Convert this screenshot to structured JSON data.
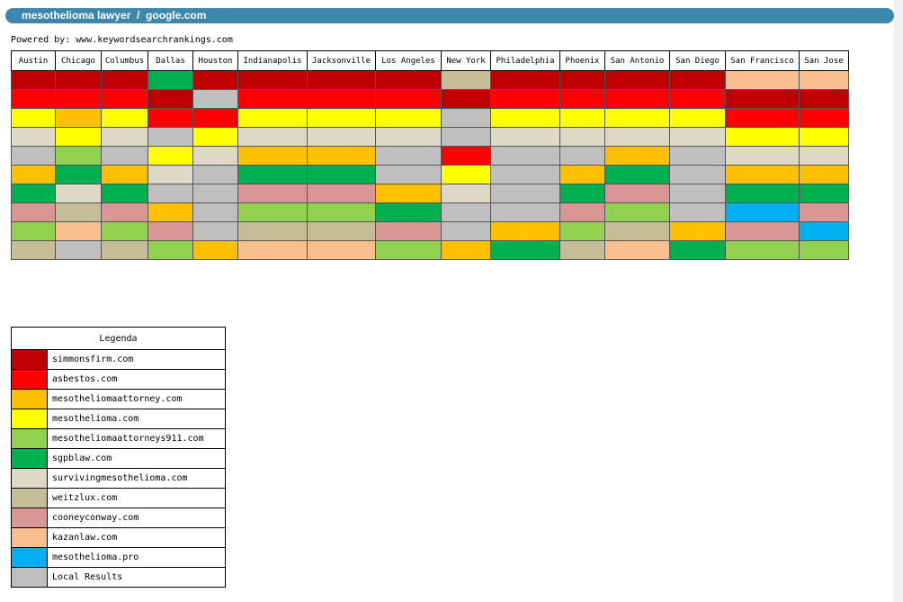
{
  "header": {
    "title": "mesothelioma lawyer  /  google.com"
  },
  "powered_by": "Powered by: www.keywordsearchrankings.com",
  "colors": {
    "simmonsfirm": "#c00000",
    "asbestos": "#ff0000",
    "mesotheliomaattorney": "#ffc000",
    "mesothelioma": "#ffff00",
    "mesotheliomaattorneys911": "#92d050",
    "sgpblaw": "#00b050",
    "survivingmesothelioma": "#ddd9c4",
    "weitzlux": "#c4bd97",
    "cooneyconway": "#da9694",
    "kazanlaw": "#fabf8f",
    "mesothelioma_pro": "#00b0f0",
    "local": "#bfbfbf"
  },
  "grid": {
    "cities": [
      "Austin",
      "Chicago",
      "Columbus",
      "Dallas",
      "Houston",
      "Indianapolis",
      "Jacksonville",
      "Los Angeles",
      "New York",
      "Philadelphia",
      "Phoenix",
      "San Antonio",
      "San Diego",
      "San Francisco",
      "San Jose"
    ],
    "rows": [
      [
        "simmonsfirm",
        "simmonsfirm",
        "simmonsfirm",
        "sgpblaw",
        "simmonsfirm",
        "simmonsfirm",
        "simmonsfirm",
        "simmonsfirm",
        "weitzlux",
        "simmonsfirm",
        "simmonsfirm",
        "simmonsfirm",
        "simmonsfirm",
        "kazanlaw",
        "kazanlaw"
      ],
      [
        "asbestos",
        "asbestos",
        "asbestos",
        "simmonsfirm",
        "local",
        "asbestos",
        "asbestos",
        "asbestos",
        "simmonsfirm",
        "asbestos",
        "asbestos",
        "asbestos",
        "asbestos",
        "simmonsfirm",
        "simmonsfirm"
      ],
      [
        "mesothelioma",
        "mesotheliomaattorney",
        "mesothelioma",
        "asbestos",
        "asbestos",
        "mesothelioma",
        "mesothelioma",
        "mesothelioma",
        "local",
        "mesothelioma",
        "mesothelioma",
        "mesothelioma",
        "mesothelioma",
        "asbestos",
        "asbestos"
      ],
      [
        "survivingmesothelioma",
        "mesothelioma",
        "survivingmesothelioma",
        "local",
        "mesothelioma",
        "survivingmesothelioma",
        "survivingmesothelioma",
        "survivingmesothelioma",
        "local",
        "survivingmesothelioma",
        "survivingmesothelioma",
        "survivingmesothelioma",
        "survivingmesothelioma",
        "mesothelioma",
        "mesothelioma"
      ],
      [
        "local",
        "mesotheliomaattorneys911",
        "local",
        "mesothelioma",
        "survivingmesothelioma",
        "mesotheliomaattorney",
        "mesotheliomaattorney",
        "local",
        "asbestos",
        "local",
        "local",
        "mesotheliomaattorney",
        "local",
        "survivingmesothelioma",
        "survivingmesothelioma"
      ],
      [
        "mesotheliomaattorney",
        "sgpblaw",
        "mesotheliomaattorney",
        "survivingmesothelioma",
        "local",
        "sgpblaw",
        "sgpblaw",
        "local",
        "mesothelioma",
        "local",
        "mesotheliomaattorney",
        "sgpblaw",
        "local",
        "mesotheliomaattorney",
        "mesotheliomaattorney"
      ],
      [
        "sgpblaw",
        "survivingmesothelioma",
        "sgpblaw",
        "local",
        "local",
        "cooneyconway",
        "cooneyconway",
        "mesotheliomaattorney",
        "survivingmesothelioma",
        "local",
        "sgpblaw",
        "cooneyconway",
        "local",
        "sgpblaw",
        "sgpblaw"
      ],
      [
        "cooneyconway",
        "weitzlux",
        "cooneyconway",
        "mesotheliomaattorney",
        "local",
        "mesotheliomaattorneys911",
        "mesotheliomaattorneys911",
        "sgpblaw",
        "local",
        "local",
        "cooneyconway",
        "mesotheliomaattorneys911",
        "local",
        "mesothelioma_pro",
        "cooneyconway"
      ],
      [
        "mesotheliomaattorneys911",
        "kazanlaw",
        "mesotheliomaattorneys911",
        "cooneyconway",
        "local",
        "weitzlux",
        "weitzlux",
        "cooneyconway",
        "local",
        "mesotheliomaattorney",
        "mesotheliomaattorneys911",
        "weitzlux",
        "mesotheliomaattorney",
        "cooneyconway",
        "mesothelioma_pro"
      ],
      [
        "weitzlux",
        "local",
        "weitzlux",
        "mesotheliomaattorneys911",
        "mesotheliomaattorney",
        "kazanlaw",
        "kazanlaw",
        "mesotheliomaattorneys911",
        "mesotheliomaattorney",
        "sgpblaw",
        "weitzlux",
        "kazanlaw",
        "sgpblaw",
        "mesotheliomaattorneys911",
        "mesotheliomaattorneys911"
      ]
    ]
  },
  "legend": {
    "title": "Legenda",
    "items": [
      {
        "key": "simmonsfirm",
        "label": "simmonsfirm.com"
      },
      {
        "key": "asbestos",
        "label": "asbestos.com"
      },
      {
        "key": "mesotheliomaattorney",
        "label": "mesotheliomaattorney.com"
      },
      {
        "key": "mesothelioma",
        "label": "mesothelioma.com"
      },
      {
        "key": "mesotheliomaattorneys911",
        "label": "mesotheliomaattorneys911.com"
      },
      {
        "key": "sgpblaw",
        "label": "sgpblaw.com"
      },
      {
        "key": "survivingmesothelioma",
        "label": "survivingmesothelioma.com"
      },
      {
        "key": "weitzlux",
        "label": "weitzlux.com"
      },
      {
        "key": "cooneyconway",
        "label": "cooneyconway.com"
      },
      {
        "key": "kazanlaw",
        "label": "kazanlaw.com"
      },
      {
        "key": "mesothelioma_pro",
        "label": "mesothelioma.pro"
      },
      {
        "key": "local",
        "label": "Local Results"
      }
    ]
  }
}
